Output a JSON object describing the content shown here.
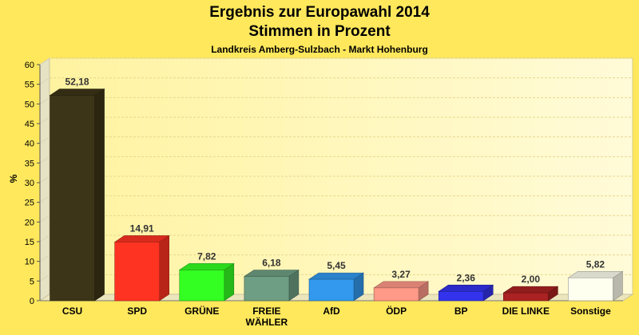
{
  "chart_data": {
    "type": "bar",
    "title": "Ergebnis zur Europawahl 2014",
    "title2": "Stimmen in Prozent",
    "subtitle": "Landkreis Amberg-Sulzbach - Markt Hohenburg",
    "xlabel": "",
    "ylabel": "%",
    "ylim": [
      0,
      60
    ],
    "ytick_step": 5,
    "grid": true,
    "categories": [
      "CSU",
      "SPD",
      "GRÜNE",
      "FREIE WÄHLER",
      "AfD",
      "ÖDP",
      "BP",
      "DIE LINKE",
      "Sonstige"
    ],
    "category_lines": [
      [
        "CSU"
      ],
      [
        "SPD"
      ],
      [
        "GRÜNE"
      ],
      [
        "FREIE",
        "WÄHLER"
      ],
      [
        "AfD"
      ],
      [
        "ÖDP"
      ],
      [
        "BP"
      ],
      [
        "DIE LINKE"
      ],
      [
        "Sonstige"
      ]
    ],
    "values": [
      52.18,
      14.91,
      7.82,
      6.18,
      5.45,
      3.27,
      2.36,
      2.0,
      5.82
    ],
    "value_labels": [
      "52,18",
      "14,91",
      "7,82",
      "6,18",
      "5,45",
      "3,27",
      "2,36",
      "2,00",
      "5,82"
    ],
    "colors": [
      "#3d3518",
      "#ff3322",
      "#33ff22",
      "#6e9f84",
      "#3399ee",
      "#ff9988",
      "#3333ee",
      "#aa2222",
      "#fffff0"
    ]
  }
}
